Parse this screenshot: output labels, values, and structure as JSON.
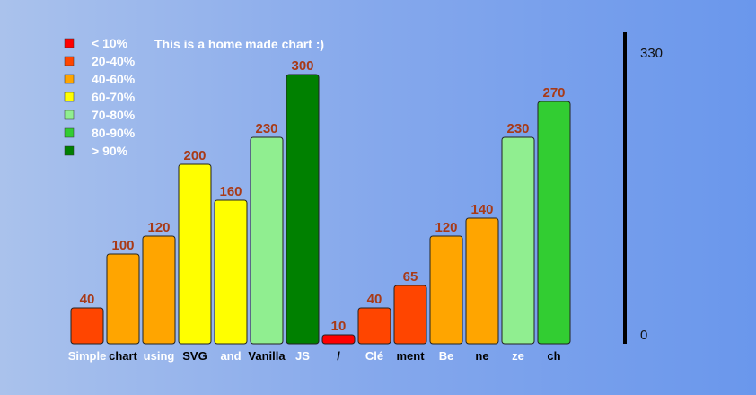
{
  "chart_data": {
    "type": "bar",
    "title": "This is a home made chart :)",
    "categories": [
      "Simple",
      "chart",
      "using",
      "SVG",
      "and",
      "Vanilla",
      "JS",
      "/",
      "Clé",
      "ment",
      "Be",
      "ne",
      "ze",
      "ch"
    ],
    "values": [
      40,
      100,
      120,
      200,
      160,
      230,
      300,
      10,
      40,
      65,
      120,
      140,
      230,
      270
    ],
    "bar_colors": [
      "#ff4500",
      "#ffa500",
      "#ffa500",
      "#ffff00",
      "#ffff00",
      "#90ee90",
      "#008000",
      "#ff0000",
      "#ff4500",
      "#ff4500",
      "#ffa500",
      "#ffa500",
      "#90ee90",
      "#32cd32"
    ],
    "category_label_colors": [
      "#ffffff",
      "#000000",
      "#ffffff",
      "#000000",
      "#ffffff",
      "#000000",
      "#ffffff",
      "#000000",
      "#ffffff",
      "#000000",
      "#ffffff",
      "#000000",
      "#ffffff",
      "#000000"
    ],
    "ylim": [
      0,
      330
    ],
    "y_ticks": [
      "330",
      "0"
    ],
    "legend": [
      {
        "label": "< 10%",
        "color": "#ff0000"
      },
      {
        "label": "20-40%",
        "color": "#ff4500"
      },
      {
        "label": "40-60%",
        "color": "#ffa500"
      },
      {
        "label": "60-70%",
        "color": "#ffff00"
      },
      {
        "label": "70-80%",
        "color": "#90ee90"
      },
      {
        "label": "80-90%",
        "color": "#32cd32"
      },
      {
        "label": "> 90%",
        "color": "#008000"
      }
    ],
    "legend_position": "top-left",
    "grid": false
  }
}
